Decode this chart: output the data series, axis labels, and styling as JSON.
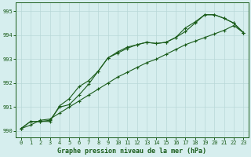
{
  "xlabel": "Graphe pression niveau de la mer (hPa)",
  "bg_color": "#d6eeee",
  "grid_color": "#b8d8d8",
  "line_color": "#1a5c1a",
  "xlim": [
    -0.5,
    23.5
  ],
  "ylim": [
    989.75,
    995.35
  ],
  "yticks": [
    990,
    991,
    992,
    993,
    994,
    995
  ],
  "xticks": [
    0,
    1,
    2,
    3,
    4,
    5,
    6,
    7,
    8,
    9,
    10,
    11,
    12,
    13,
    14,
    15,
    16,
    17,
    18,
    19,
    20,
    21,
    22,
    23
  ],
  "hours": [
    0,
    1,
    2,
    3,
    4,
    5,
    6,
    7,
    8,
    9,
    10,
    11,
    12,
    13,
    14,
    15,
    16,
    17,
    18,
    19,
    20,
    21,
    22,
    23
  ],
  "line_straight": [
    990.1,
    990.25,
    990.45,
    990.5,
    990.75,
    991.0,
    991.25,
    991.5,
    991.75,
    992.0,
    992.25,
    992.45,
    992.65,
    992.85,
    993.0,
    993.2,
    993.4,
    993.6,
    993.75,
    993.9,
    994.05,
    994.2,
    994.4,
    994.1
  ],
  "line_curvy1": [
    990.1,
    990.4,
    990.4,
    990.4,
    991.05,
    991.35,
    991.85,
    992.1,
    992.5,
    993.05,
    993.3,
    993.5,
    993.6,
    993.7,
    993.65,
    993.7,
    993.9,
    994.15,
    994.5,
    994.85,
    994.85,
    994.7,
    994.5,
    994.1
  ],
  "line_curvy2": [
    990.1,
    990.4,
    990.4,
    990.45,
    991.0,
    991.1,
    991.5,
    991.95,
    992.5,
    993.05,
    993.25,
    993.45,
    993.6,
    993.7,
    993.65,
    993.7,
    993.9,
    994.3,
    994.55,
    994.85,
    994.85,
    994.7,
    994.5,
    994.1
  ]
}
